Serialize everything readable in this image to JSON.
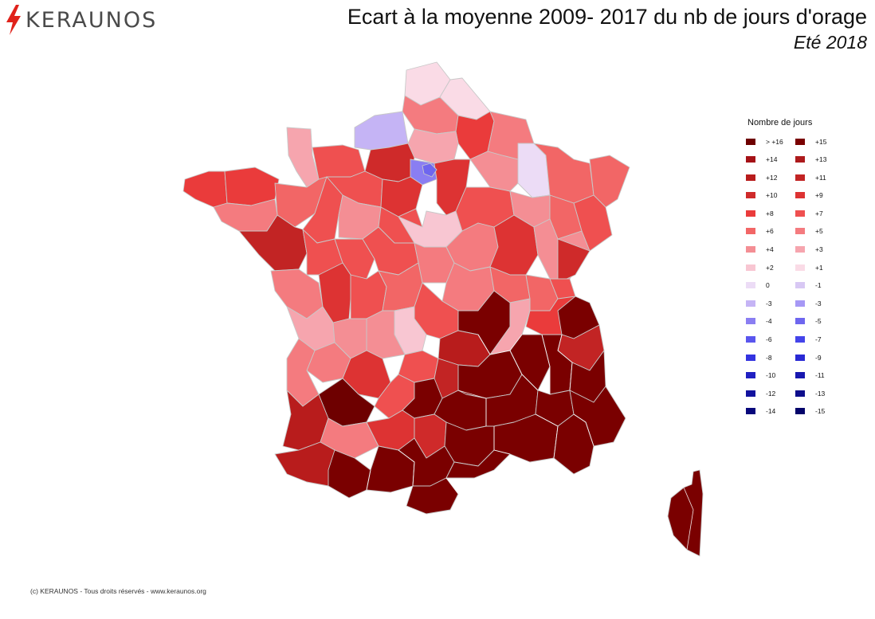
{
  "brand": {
    "name": "KERAUNOS",
    "bolt_color": "#e0221b"
  },
  "title": "Ecart à la moyenne 2009- 2017 du nb de jours d'orage",
  "subtitle": "Eté 2018",
  "legend": {
    "title": "Nombre de jours",
    "items": [
      {
        "label": "> +16",
        "color": "#6e0000"
      },
      {
        "label": "+15",
        "color": "#7a0000"
      },
      {
        "label": "+14",
        "color": "#a51116"
      },
      {
        "label": "+13",
        "color": "#ad1a1c"
      },
      {
        "label": "+12",
        "color": "#b81c1c"
      },
      {
        "label": "+11",
        "color": "#c22424"
      },
      {
        "label": "+10",
        "color": "#cf2a2a"
      },
      {
        "label": "+9",
        "color": "#dd3333"
      },
      {
        "label": "+8",
        "color": "#ea3b3b"
      },
      {
        "label": "+7",
        "color": "#ef5050"
      },
      {
        "label": "+6",
        "color": "#f26666"
      },
      {
        "label": "+5",
        "color": "#f47b7f"
      },
      {
        "label": "+4",
        "color": "#f48e94"
      },
      {
        "label": "+3",
        "color": "#f6a5ae"
      },
      {
        "label": "+2",
        "color": "#f8c6d2"
      },
      {
        "label": "+1",
        "color": "#fadbe6"
      },
      {
        "label": "0",
        "color": "#ecdcf6"
      },
      {
        "label": "-1",
        "color": "#d8c8f4"
      },
      {
        "label": "-3",
        "color": "#c5b4f5"
      },
      {
        "label": "-3",
        "color": "#a698f5"
      },
      {
        "label": "-4",
        "color": "#8a7ef2"
      },
      {
        "label": "-5",
        "color": "#6e66ef"
      },
      {
        "label": "-6",
        "color": "#5a56ee"
      },
      {
        "label": "-7",
        "color": "#4444ea"
      },
      {
        "label": "-8",
        "color": "#3333e0"
      },
      {
        "label": "-9",
        "color": "#2929d4"
      },
      {
        "label": "-10",
        "color": "#2020c2"
      },
      {
        "label": "-11",
        "color": "#1818b0"
      },
      {
        "label": "-12",
        "color": "#12129e"
      },
      {
        "label": "-13",
        "color": "#0d0d8c"
      },
      {
        "label": "-14",
        "color": "#08087c"
      },
      {
        "label": "-15",
        "color": "#04046a"
      }
    ]
  },
  "map": {
    "region": "France métropolitaine (départements)",
    "colors": {
      "border": "#c8c8c8",
      "dark_region_border": "#ffffff"
    }
  },
  "footer": "(c) KERAUNOS - Tous droits réservés - www.keraunos.org"
}
